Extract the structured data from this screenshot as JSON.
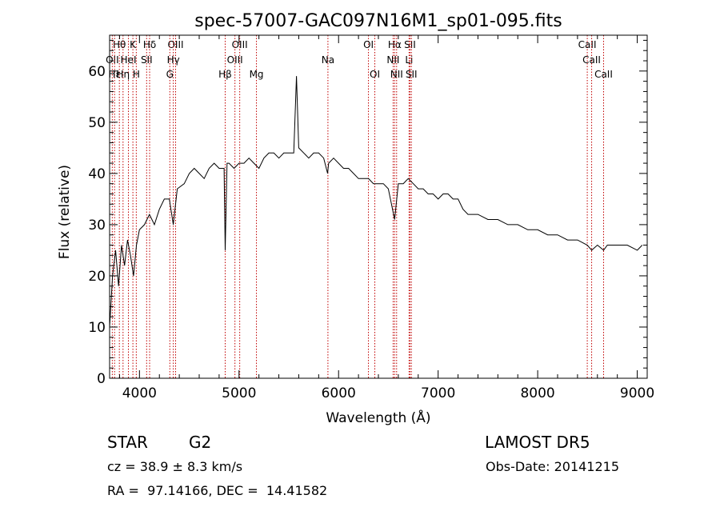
{
  "chart_data": {
    "type": "line",
    "title": "spec-57007-GAC097N16M1_sp01-095.fits",
    "xlabel": "Wavelength (Å)",
    "ylabel": "Flux (relative)",
    "xlim": [
      3700,
      9100
    ],
    "ylim": [
      0,
      67
    ],
    "x_ticks": [
      4000,
      5000,
      6000,
      7000,
      8000,
      9000
    ],
    "y_ticks": [
      0,
      10,
      20,
      30,
      40,
      50,
      60
    ],
    "x_tick_labels": [
      "4000",
      "5000",
      "6000",
      "7000",
      "8000",
      "9000"
    ],
    "y_tick_labels": [
      "0",
      "10",
      "20",
      "30",
      "40",
      "50",
      "60"
    ],
    "grid": false,
    "series": [
      {
        "line_color": "#000000",
        "x": [
          3700,
          3730,
          3760,
          3790,
          3820,
          3850,
          3880,
          3910,
          3940,
          3970,
          4000,
          4050,
          4100,
          4150,
          4200,
          4250,
          4300,
          4340,
          4380,
          4450,
          4500,
          4550,
          4600,
          4650,
          4700,
          4750,
          4800,
          4850,
          4861,
          4880,
          4900,
          4950,
          5000,
          5050,
          5100,
          5150,
          5200,
          5250,
          5300,
          5350,
          5400,
          5450,
          5500,
          5550,
          5577,
          5600,
          5650,
          5700,
          5750,
          5800,
          5850,
          5890,
          5900,
          5950,
          6000,
          6050,
          6100,
          6150,
          6200,
          6250,
          6300,
          6350,
          6400,
          6450,
          6500,
          6563,
          6600,
          6650,
          6700,
          6750,
          6800,
          6850,
          6900,
          6950,
          7000,
          7050,
          7100,
          7150,
          7200,
          7250,
          7300,
          7350,
          7400,
          7500,
          7600,
          7700,
          7800,
          7900,
          8000,
          8100,
          8200,
          8300,
          8400,
          8498,
          8542,
          8600,
          8662,
          8700,
          8800,
          8900,
          9000,
          9050
        ],
        "y": [
          10,
          20,
          25,
          18,
          26,
          22,
          27,
          24,
          20,
          26,
          29,
          30,
          32,
          30,
          33,
          35,
          35,
          30,
          37,
          38,
          40,
          41,
          40,
          39,
          41,
          42,
          41,
          41,
          25,
          42,
          42,
          41,
          42,
          42,
          43,
          42,
          41,
          43,
          44,
          44,
          43,
          44,
          44,
          44,
          59,
          45,
          44,
          43,
          44,
          44,
          43,
          40,
          42,
          43,
          42,
          41,
          41,
          40,
          39,
          39,
          39,
          38,
          38,
          38,
          37,
          31,
          38,
          38,
          39,
          38,
          37,
          37,
          36,
          36,
          35,
          36,
          36,
          35,
          35,
          33,
          32,
          32,
          32,
          31,
          31,
          30,
          30,
          29,
          29,
          28,
          28,
          27,
          27,
          26,
          25,
          26,
          25,
          26,
          26,
          26,
          25,
          26
        ]
      }
    ],
    "line_markers": [
      {
        "label": "Hθ",
        "x": 3798,
        "row": 0
      },
      {
        "label": "K",
        "x": 3934,
        "row": 0
      },
      {
        "label": "Hδ",
        "x": 4102,
        "row": 0
      },
      {
        "label": "OIII",
        "x": 4363,
        "row": 0
      },
      {
        "label": "OIII",
        "x": 5007,
        "row": 0
      },
      {
        "label": "OI",
        "x": 6300,
        "row": 0
      },
      {
        "label": "Hα",
        "x": 6563,
        "row": 0
      },
      {
        "label": "SII",
        "x": 6717,
        "row": 0
      },
      {
        "label": "CaII",
        "x": 8498,
        "row": 0
      },
      {
        "label": "OII",
        "x": 3727,
        "row": 1
      },
      {
        "label": "HeI",
        "x": 3889,
        "row": 1
      },
      {
        "label": "SII",
        "x": 4072,
        "row": 1
      },
      {
        "label": "Hγ",
        "x": 4340,
        "row": 1
      },
      {
        "label": "OIII",
        "x": 4959,
        "row": 1
      },
      {
        "label": "NII",
        "x": 6548,
        "row": 1
      },
      {
        "label": "Li",
        "x": 6708,
        "row": 1
      },
      {
        "label": "CaII",
        "x": 8542,
        "row": 1
      },
      {
        "label": "Hε",
        "x": 3750,
        "row": 2
      },
      {
        "label": "Hη",
        "x": 3835,
        "row": 2
      },
      {
        "label": "H",
        "x": 3968,
        "row": 2
      },
      {
        "label": "G",
        "x": 4305,
        "row": 2
      },
      {
        "label": "Hβ",
        "x": 4861,
        "row": 2
      },
      {
        "label": "Mg",
        "x": 5175,
        "row": 2
      },
      {
        "label": "Na",
        "x": 5893,
        "row": 1
      },
      {
        "label": "OI",
        "x": 6364,
        "row": 2
      },
      {
        "label": "NII",
        "x": 6583,
        "row": 2
      },
      {
        "label": "SII",
        "x": 6731,
        "row": 2
      },
      {
        "label": "CaII",
        "x": 8662,
        "row": 2
      }
    ],
    "colors": {
      "spectrum": "#000000",
      "line_markers": "#c00000",
      "axes": "#000000"
    }
  },
  "footer": {
    "object_class": "STAR",
    "subclass": "G2",
    "survey": "LAMOST DR5",
    "cz": "cz = 38.9 ± 8.3 km/s",
    "obs_date": "Obs-Date: 20141215",
    "coords": "RA =  97.14166, DEC =  14.41582"
  }
}
